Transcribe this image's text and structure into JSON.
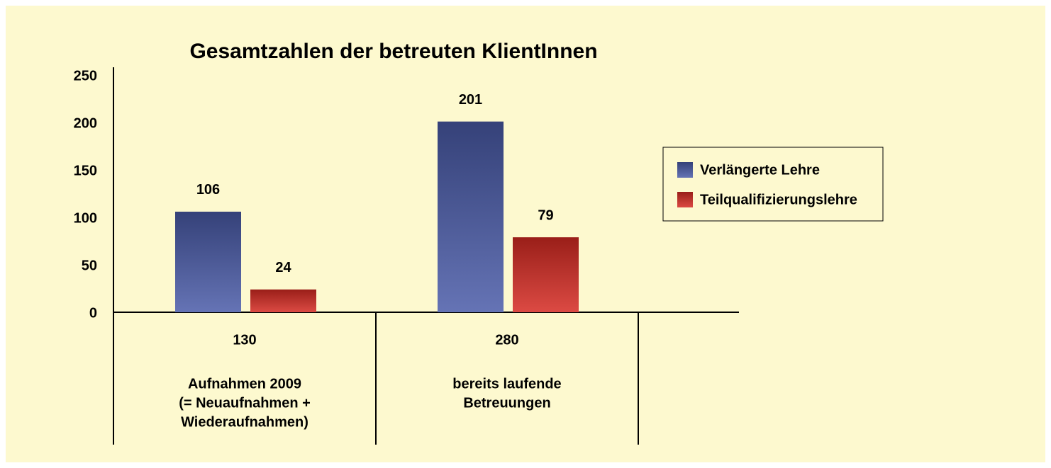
{
  "chart_data": {
    "type": "bar",
    "title": "Gesamtzahlen der betreuten KlientInnen",
    "categories": [
      [
        "Aufnahmen 2009",
        "(= Neuaufnahmen +",
        "Wiederaufnahmen)"
      ],
      [
        "bereits laufende",
        "Betreuungen"
      ],
      null
    ],
    "totals": [
      130,
      280,
      null
    ],
    "series": [
      {
        "name": "Verlängerte Lehre",
        "color": "#4a5ba8",
        "values": [
          106,
          201,
          null
        ]
      },
      {
        "name": "Teilqualifizierungslehre",
        "color": "#d62a22",
        "values": [
          24,
          79,
          null
        ]
      }
    ],
    "ylim": [
      0,
      250
    ],
    "yticks": [
      0,
      50,
      100,
      150,
      200,
      250
    ],
    "grid": false,
    "legend": "right"
  }
}
